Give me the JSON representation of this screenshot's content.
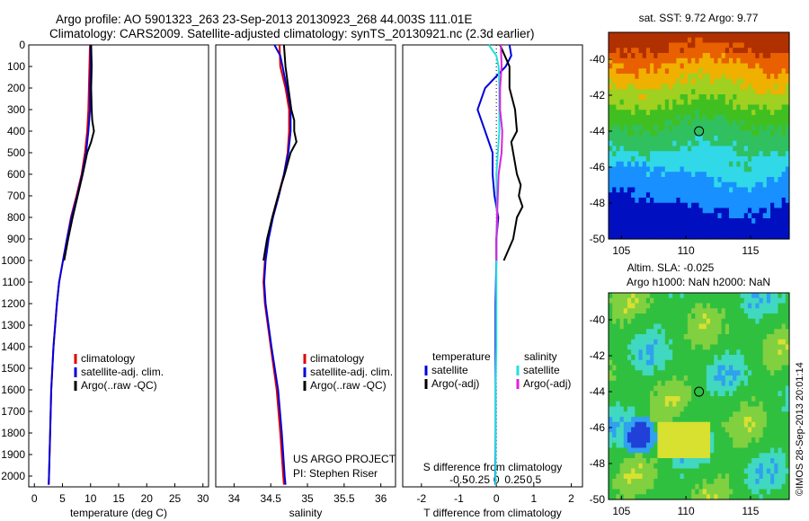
{
  "header": {
    "line1": "Argo profile: AO 5901323_263 23-Sep-2013 20130923_268 44.003S 111.01E",
    "line2": "Climatology: CARS2009. Satellite-adjusted climatology: synTS_20130921.nc (2.3d earlier)"
  },
  "watermark": "©IMOS 28-Sep-2013 20:01:14",
  "chart_data": [
    {
      "type": "line",
      "id": "temperature-profile",
      "xlabel": "temperature (deg C)",
      "ylim": [
        2050,
        0
      ],
      "xlim": [
        -1,
        31
      ],
      "xticks": [
        0,
        5,
        10,
        15,
        20,
        25,
        30
      ],
      "yticks": [
        0,
        100,
        200,
        300,
        400,
        500,
        600,
        700,
        800,
        900,
        1000,
        1100,
        1200,
        1300,
        1400,
        1500,
        1600,
        1700,
        1800,
        1900,
        2000
      ],
      "legend": [
        "climatology",
        "satellite-adj. clim.",
        "Argo(..raw -QC)"
      ],
      "legend_position": "lower-right",
      "series": [
        {
          "name": "climatology",
          "color": "#e00000",
          "depth": [
            0,
            100,
            200,
            300,
            400,
            500,
            600,
            700,
            800,
            900,
            1000,
            1100,
            1200,
            1400,
            1600,
            1800,
            2000,
            2040
          ],
          "values": [
            9.9,
            9.8,
            9.7,
            9.6,
            9.4,
            9.0,
            8.4,
            7.5,
            6.5,
            5.8,
            5.1,
            4.4,
            4.0,
            3.4,
            3.0,
            2.8,
            2.6,
            2.55
          ]
        },
        {
          "name": "satellite-adj. clim.",
          "color": "#0000dd",
          "depth": [
            0,
            100,
            200,
            300,
            400,
            500,
            600,
            700,
            800,
            900,
            1000,
            1100,
            1200,
            1400,
            1600,
            1800,
            2000,
            2040
          ],
          "values": [
            10.0,
            10.0,
            9.9,
            9.9,
            9.6,
            9.2,
            8.5,
            7.6,
            6.6,
            5.8,
            5.1,
            4.4,
            4.0,
            3.4,
            3.0,
            2.8,
            2.6,
            2.55
          ]
        },
        {
          "name": "Argo(..raw -QC)",
          "color": "#000000",
          "depth": [
            0,
            100,
            200,
            300,
            350,
            400,
            450,
            500,
            600,
            700,
            800,
            900,
            1000
          ],
          "values": [
            10.1,
            10.2,
            10.1,
            10.2,
            10.3,
            10.6,
            10.1,
            9.4,
            8.6,
            7.7,
            6.8,
            6.0,
            5.3
          ]
        }
      ]
    },
    {
      "type": "line",
      "id": "salinity-profile",
      "xlabel": "salinity",
      "ylim": [
        2050,
        0
      ],
      "xlim": [
        33.75,
        36.2
      ],
      "xticks": [
        34,
        34.5,
        35,
        35.5,
        36
      ],
      "legend": [
        "climatology",
        "satellite-adj. clim.",
        "Argo(..raw -QC)"
      ],
      "legend_position": "lower-right",
      "annotation": [
        "US ARGO PROJECT",
        "PI: Stephen Riser"
      ],
      "series": [
        {
          "name": "climatology",
          "color": "#e00000",
          "depth": [
            0,
            100,
            200,
            300,
            400,
            500,
            600,
            700,
            800,
            900,
            1000,
            1100,
            1200,
            1400,
            1600,
            1800,
            2000,
            2040
          ],
          "values": [
            34.62,
            34.63,
            34.7,
            34.75,
            34.75,
            34.73,
            34.68,
            34.6,
            34.52,
            34.46,
            34.42,
            34.4,
            34.42,
            34.5,
            34.58,
            34.63,
            34.67,
            34.68
          ]
        },
        {
          "name": "satellite-adj. clim.",
          "color": "#0000dd",
          "depth": [
            0,
            50,
            100,
            200,
            300,
            400,
            500,
            600,
            700,
            800,
            900,
            1000,
            1100,
            1200,
            1400,
            1600,
            1800,
            2000,
            2040
          ],
          "values": [
            34.55,
            34.63,
            34.66,
            34.72,
            34.77,
            34.77,
            34.74,
            34.68,
            34.61,
            34.53,
            34.47,
            34.43,
            34.41,
            34.43,
            34.51,
            34.6,
            34.65,
            34.69,
            34.7
          ]
        },
        {
          "name": "Argo(..raw -QC)",
          "color": "#000000",
          "depth": [
            0,
            100,
            200,
            300,
            350,
            400,
            450,
            500,
            600,
            700,
            800,
            900,
            1000
          ],
          "values": [
            34.68,
            34.7,
            34.74,
            34.78,
            34.82,
            34.82,
            34.85,
            34.77,
            34.69,
            34.6,
            34.52,
            34.45,
            34.4
          ]
        }
      ]
    },
    {
      "type": "line",
      "id": "difference-profile",
      "xlabel": "T difference from climatology",
      "xlabel2": "S difference from climatology",
      "ylim": [
        2050,
        0
      ],
      "xlim": [
        -2.5,
        2.3
      ],
      "xticks_T": [
        -2,
        -1,
        0,
        1,
        2
      ],
      "xticks_S_labels": [
        "-0.5",
        "-0.25",
        "0",
        "0.25",
        "0.5"
      ],
      "xticks_S_values": [
        -0.5,
        -0.25,
        0,
        0.25,
        0.5
      ],
      "legend_temperature_title": "temperature",
      "legend_salinity_title": "salinity",
      "legend": [
        "satellite",
        "Argo(-adj)",
        "satellite",
        "Argo(-adj)"
      ],
      "legend_position": "lower-right",
      "series": [
        {
          "name": "T satellite",
          "color": "#0000dd",
          "depth": [
            0,
            50,
            100,
            200,
            300,
            400,
            500,
            600,
            700,
            800,
            900,
            1000,
            1200,
            1400,
            1600,
            1800,
            2040
          ],
          "values": [
            0.35,
            0.4,
            0.25,
            -0.3,
            -0.5,
            -0.3,
            -0.1,
            -0.1,
            -0.05,
            0.05,
            0.0,
            0.0,
            -0.02,
            -0.02,
            -0.02,
            -0.02,
            -0.03
          ]
        },
        {
          "name": "T Argo(-adj)",
          "color": "#000000",
          "depth": [
            0,
            100,
            200,
            300,
            400,
            450,
            500,
            600,
            650,
            700,
            750,
            800,
            850,
            900,
            1000
          ],
          "values": [
            0.1,
            0.35,
            0.35,
            0.5,
            0.55,
            0.4,
            0.45,
            0.55,
            0.65,
            0.6,
            0.7,
            0.55,
            0.5,
            0.45,
            0.2
          ]
        },
        {
          "name": "S satellite",
          "color": "#22e0e0",
          "depth": [
            0,
            50,
            100,
            200,
            300,
            400,
            600,
            800,
            1000,
            1200,
            1400,
            1600,
            1800,
            2040
          ],
          "values": [
            -0.1,
            0.0,
            0.03,
            0.04,
            0.04,
            0.04,
            0.0,
            0.01,
            0.0,
            0.0,
            0.0,
            -0.01,
            -0.01,
            -0.01
          ]
        },
        {
          "name": "S Argo(-adj)",
          "color": "#dd22dd",
          "depth": [
            0,
            100,
            200,
            300,
            400,
            500,
            600,
            700,
            800,
            900,
            1000
          ],
          "values": [
            0.06,
            0.07,
            0.05,
            0.05,
            0.08,
            0.07,
            0.03,
            0.02,
            0.01,
            0.0,
            0.0
          ]
        }
      ]
    },
    {
      "type": "heatmap",
      "id": "sst-map",
      "title": "sat. SST: 9.72  Argo: 9.77",
      "xticks": [
        105,
        110,
        115
      ],
      "yticks": [
        -40,
        -42,
        -44,
        -46,
        -48,
        -50
      ],
      "xlim": [
        104,
        118
      ],
      "ylim": [
        -50,
        -38.5
      ],
      "marker": {
        "lon": 111.01,
        "lat": -44.003
      }
    },
    {
      "type": "heatmap",
      "id": "sla-map",
      "title": "Altim. SLA: -0.025",
      "subtitle": "Argo h1000: NaN h2000: NaN",
      "xticks": [
        105,
        110,
        115
      ],
      "yticks": [
        -40,
        -42,
        -44,
        -46,
        -48,
        -50
      ],
      "xlim": [
        104,
        118
      ],
      "ylim": [
        -50,
        -38.5
      ],
      "marker": {
        "lon": 111.01,
        "lat": -44.003
      }
    }
  ]
}
